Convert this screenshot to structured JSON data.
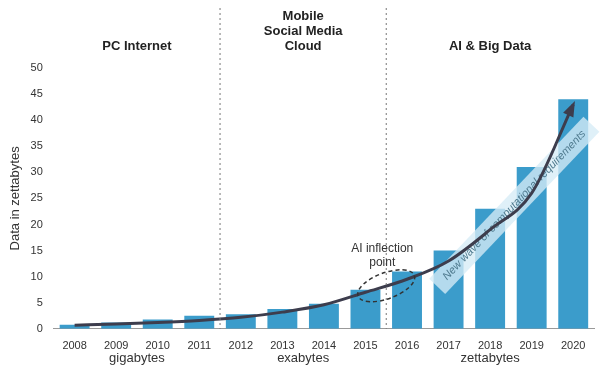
{
  "chart_data": {
    "type": "bar",
    "y_label": "Data in zettabytes",
    "categories": [
      "2008",
      "2009",
      "2010",
      "2011",
      "2012",
      "2013",
      "2014",
      "2015",
      "2016",
      "2017",
      "2018",
      "2019",
      "2020"
    ],
    "series": [
      {
        "color": "#3b9ccb",
        "values": [
          0.8,
          1.2,
          1.8,
          2.5,
          2.8,
          3.8,
          4.8,
          7.5,
          11,
          15,
          23,
          31,
          44
        ]
      },
      {
        "type": "line",
        "color": "#3d3d4d",
        "marker": "none",
        "values": [
          0.7,
          0.9,
          1.2,
          1.6,
          2.2,
          3.2,
          4.6,
          7,
          9.5,
          13,
          19,
          26,
          43
        ]
      }
    ],
    "ylim": [
      0,
      50
    ],
    "yticks": [
      0,
      5,
      10,
      15,
      20,
      25,
      30,
      35,
      40,
      45,
      50
    ],
    "grid": false,
    "eras": [
      {
        "label": "PC Internet",
        "unit": "gigabytes",
        "from": "2008",
        "to": "2011"
      },
      {
        "label": "Mobile\nSocial Media\nCloud",
        "unit": "exabytes",
        "from": "2012",
        "to": "2015"
      },
      {
        "label": "AI & Big Data",
        "unit": "zettabytes",
        "from": "2016",
        "to": "2020"
      }
    ],
    "annotations": [
      "AI inflection point",
      "New wave of computational requirements"
    ]
  }
}
